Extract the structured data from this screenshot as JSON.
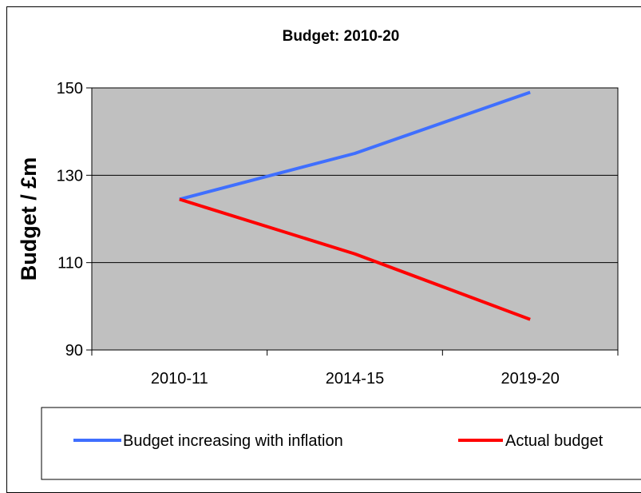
{
  "chart_data": {
    "type": "line",
    "title": "Budget: 2010-20",
    "xlabel": "",
    "ylabel": "Budget / £m",
    "categories": [
      "2010-11",
      "2014-15",
      "2019-20"
    ],
    "yticks": [
      "90",
      "110",
      "130",
      "150"
    ],
    "ylim": [
      90,
      150
    ],
    "grid": true,
    "legend_position": "bottom",
    "plot_background": "#C0C0C0",
    "series": [
      {
        "name": "Budget increasing with inflation",
        "color": "#3F6FFF",
        "values": [
          124.5,
          135,
          149
        ]
      },
      {
        "name": "Actual budget",
        "color": "#FF0000",
        "values": [
          124.5,
          112,
          97
        ]
      }
    ]
  }
}
